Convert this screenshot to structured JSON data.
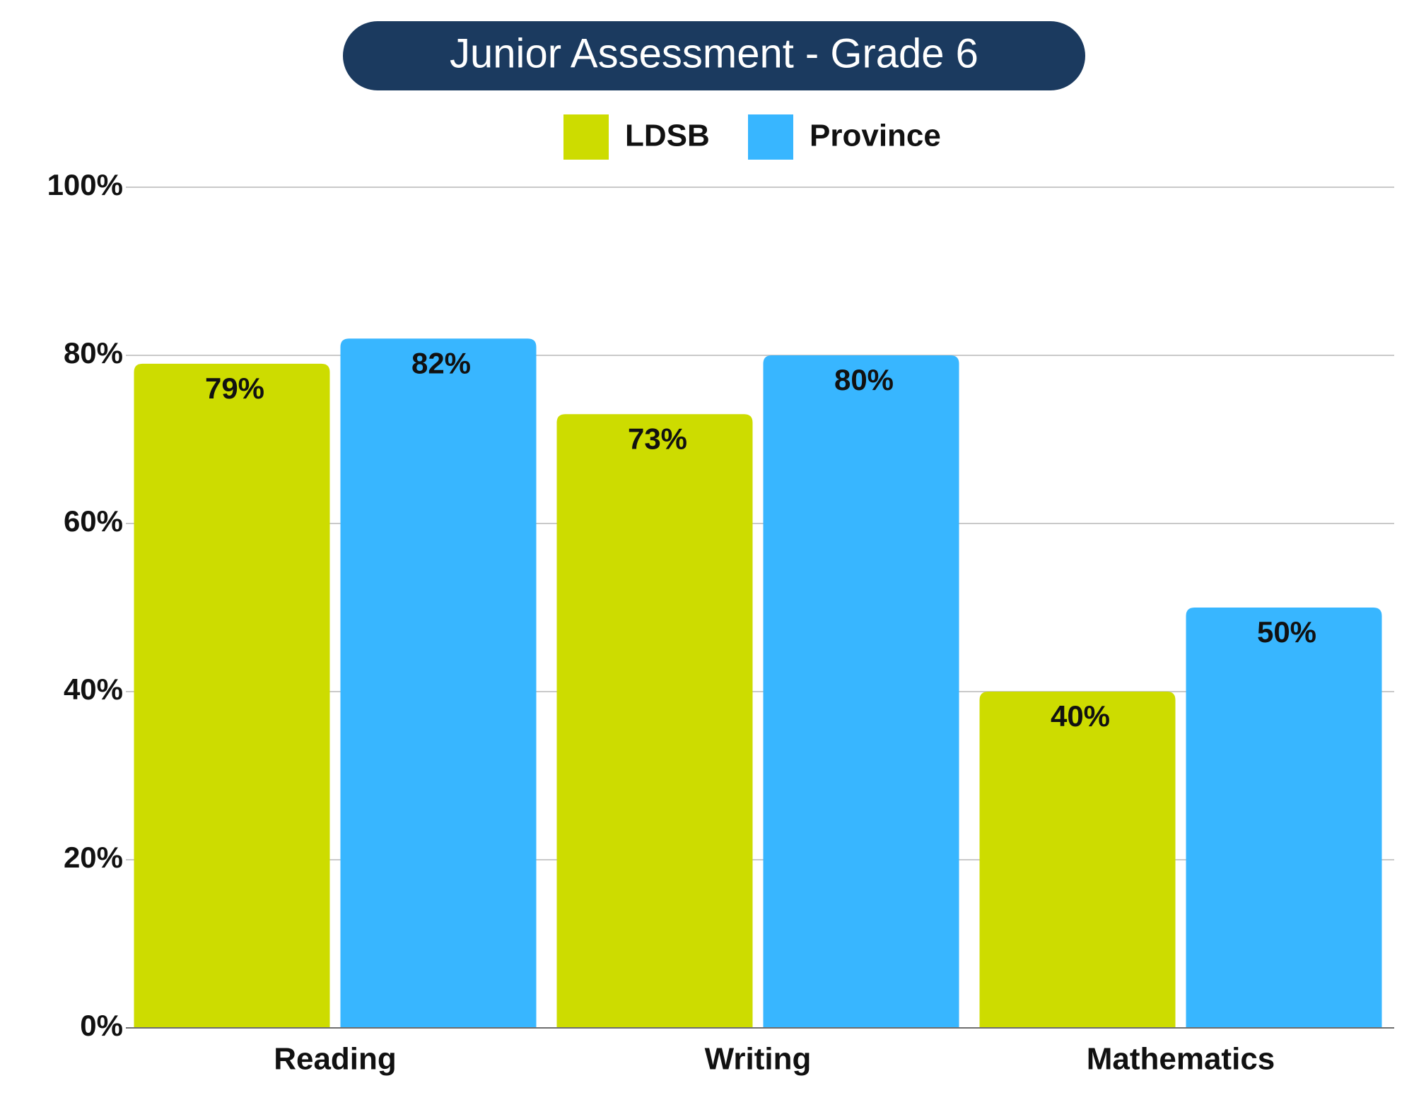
{
  "chart_data": {
    "type": "bar",
    "title": "Junior Assessment - Grade 6",
    "xlabel": "",
    "ylabel": "",
    "categories": [
      "Reading",
      "Writing",
      "Mathematics"
    ],
    "series": [
      {
        "name": "LDSB",
        "color": "#cddc00",
        "values": [
          79,
          73,
          40
        ]
      },
      {
        "name": "Province",
        "color": "#38b6ff",
        "values": [
          82,
          80,
          50
        ]
      }
    ],
    "value_labels": [
      [
        "79%",
        "73%",
        "40%"
      ],
      [
        "82%",
        "80%",
        "50%"
      ]
    ],
    "ylim": [
      0,
      100
    ],
    "yticks": [
      0,
      20,
      40,
      60,
      80,
      100
    ],
    "ytick_labels": [
      "0%",
      "20%",
      "40%",
      "60%",
      "80%",
      "100%"
    ],
    "grid": true,
    "legend": "top-center",
    "title_background": "#1b3a5f"
  }
}
